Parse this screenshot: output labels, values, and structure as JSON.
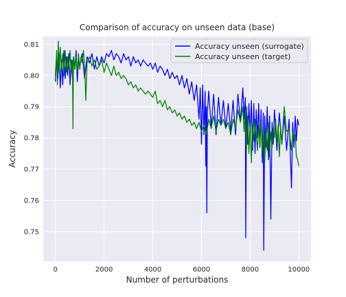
{
  "chart_data": {
    "type": "line",
    "title": "Comparison of accuracy on unseen data (base)",
    "xlabel": "Number of perturbations",
    "ylabel": "Accuracy",
    "xlim": [
      -500,
      10500
    ],
    "ylim": [
      0.7405,
      0.8125
    ],
    "x_ticks": [
      0,
      2000,
      4000,
      6000,
      8000,
      10000
    ],
    "y_ticks": [
      0.75,
      0.76,
      0.77,
      0.78,
      0.79,
      0.8,
      0.81
    ],
    "grid": true,
    "legend_position": "top-right",
    "series": [
      {
        "name": "Accuracy unseen (surrogate)",
        "color": "#0000ff",
        "points": [
          [
            0,
            0.798
          ],
          [
            50,
            0.806
          ],
          [
            100,
            0.799
          ],
          [
            150,
            0.807
          ],
          [
            200,
            0.796
          ],
          [
            250,
            0.805
          ],
          [
            300,
            0.797
          ],
          [
            350,
            0.808
          ],
          [
            400,
            0.799
          ],
          [
            450,
            0.806
          ],
          [
            500,
            0.8
          ],
          [
            550,
            0.807
          ],
          [
            600,
            0.797
          ],
          [
            650,
            0.805
          ],
          [
            700,
            0.799
          ],
          [
            750,
            0.806
          ],
          [
            800,
            0.802
          ],
          [
            850,
            0.808
          ],
          [
            900,
            0.798
          ],
          [
            950,
            0.805
          ],
          [
            1000,
            0.803
          ],
          [
            1100,
            0.807
          ],
          [
            1200,
            0.799
          ],
          [
            1300,
            0.806
          ],
          [
            1400,
            0.804
          ],
          [
            1500,
            0.807
          ],
          [
            1600,
            0.802
          ],
          [
            1700,
            0.806
          ],
          [
            1800,
            0.803
          ],
          [
            1900,
            0.806
          ],
          [
            2000,
            0.804
          ],
          [
            2100,
            0.807
          ],
          [
            2200,
            0.806
          ],
          [
            2300,
            0.808
          ],
          [
            2400,
            0.805
          ],
          [
            2500,
            0.807
          ],
          [
            2600,
            0.806
          ],
          [
            2700,
            0.804
          ],
          [
            2800,
            0.807
          ],
          [
            2900,
            0.805
          ],
          [
            3000,
            0.806
          ],
          [
            3100,
            0.803
          ],
          [
            3200,
            0.806
          ],
          [
            3300,
            0.804
          ],
          [
            3400,
            0.805
          ],
          [
            3500,
            0.803
          ],
          [
            3600,
            0.805
          ],
          [
            3700,
            0.804
          ],
          [
            3800,
            0.803
          ],
          [
            3900,
            0.804
          ],
          [
            4000,
            0.802
          ],
          [
            4100,
            0.804
          ],
          [
            4200,
            0.801
          ],
          [
            4300,
            0.803
          ],
          [
            4400,
            0.802
          ],
          [
            4500,
            0.8
          ],
          [
            4600,
            0.802
          ],
          [
            4700,
            0.799
          ],
          [
            4800,
            0.801
          ],
          [
            4900,
            0.799
          ],
          [
            5000,
            0.8
          ],
          [
            5100,
            0.797
          ],
          [
            5200,
            0.8
          ],
          [
            5300,
            0.796
          ],
          [
            5400,
            0.799
          ],
          [
            5500,
            0.794
          ],
          [
            5600,
            0.798
          ],
          [
            5700,
            0.792
          ],
          [
            5800,
            0.797
          ],
          [
            5900,
            0.786
          ],
          [
            5950,
            0.796
          ],
          [
            6000,
            0.778
          ],
          [
            6050,
            0.797
          ],
          [
            6100,
            0.781
          ],
          [
            6150,
            0.795
          ],
          [
            6180,
            0.771
          ],
          [
            6200,
            0.79
          ],
          [
            6220,
            0.756
          ],
          [
            6240,
            0.788
          ],
          [
            6300,
            0.795
          ],
          [
            6400,
            0.783
          ],
          [
            6500,
            0.794
          ],
          [
            6600,
            0.781
          ],
          [
            6700,
            0.793
          ],
          [
            6800,
            0.784
          ],
          [
            6900,
            0.792
          ],
          [
            7000,
            0.783
          ],
          [
            7100,
            0.791
          ],
          [
            7200,
            0.782
          ],
          [
            7300,
            0.792
          ],
          [
            7400,
            0.781
          ],
          [
            7500,
            0.794
          ],
          [
            7600,
            0.785
          ],
          [
            7700,
            0.796
          ],
          [
            7750,
            0.786
          ],
          [
            7800,
            0.793
          ],
          [
            7820,
            0.748
          ],
          [
            7850,
            0.79
          ],
          [
            7900,
            0.778
          ],
          [
            7950,
            0.791
          ],
          [
            8000,
            0.781
          ],
          [
            8050,
            0.792
          ],
          [
            8100,
            0.776
          ],
          [
            8150,
            0.791
          ],
          [
            8200,
            0.775
          ],
          [
            8250,
            0.789
          ],
          [
            8300,
            0.78
          ],
          [
            8350,
            0.791
          ],
          [
            8400,
            0.777
          ],
          [
            8450,
            0.789
          ],
          [
            8500,
            0.772
          ],
          [
            8540,
            0.788
          ],
          [
            8560,
            0.744
          ],
          [
            8600,
            0.787
          ],
          [
            8650,
            0.777
          ],
          [
            8700,
            0.79
          ],
          [
            8750,
            0.773
          ],
          [
            8800,
            0.787
          ],
          [
            8850,
            0.754
          ],
          [
            8900,
            0.785
          ],
          [
            8950,
            0.778
          ],
          [
            9000,
            0.789
          ],
          [
            9100,
            0.776
          ],
          [
            9200,
            0.788
          ],
          [
            9300,
            0.778
          ],
          [
            9400,
            0.787
          ],
          [
            9500,
            0.776
          ],
          [
            9600,
            0.786
          ],
          [
            9700,
            0.764
          ],
          [
            9750,
            0.785
          ],
          [
            9800,
            0.777
          ],
          [
            9850,
            0.787
          ],
          [
            9900,
            0.779
          ],
          [
            9950,
            0.786
          ],
          [
            10000,
            0.784
          ]
        ]
      },
      {
        "name": "Accuracy unseen (target)",
        "color": "#008000",
        "points": [
          [
            0,
            0.8
          ],
          [
            50,
            0.808
          ],
          [
            80,
            0.797
          ],
          [
            120,
            0.811
          ],
          [
            160,
            0.801
          ],
          [
            200,
            0.809
          ],
          [
            250,
            0.802
          ],
          [
            300,
            0.807
          ],
          [
            350,
            0.8
          ],
          [
            400,
            0.808
          ],
          [
            450,
            0.801
          ],
          [
            500,
            0.806
          ],
          [
            550,
            0.802
          ],
          [
            600,
            0.808
          ],
          [
            650,
            0.801
          ],
          [
            700,
            0.805
          ],
          [
            720,
            0.783
          ],
          [
            740,
            0.806
          ],
          [
            800,
            0.802
          ],
          [
            850,
            0.806
          ],
          [
            900,
            0.801
          ],
          [
            950,
            0.807
          ],
          [
            1000,
            0.802
          ],
          [
            1050,
            0.806
          ],
          [
            1100,
            0.804
          ],
          [
            1150,
            0.808
          ],
          [
            1200,
            0.803
          ],
          [
            1250,
            0.792
          ],
          [
            1300,
            0.804
          ],
          [
            1400,
            0.806
          ],
          [
            1500,
            0.803
          ],
          [
            1600,
            0.805
          ],
          [
            1700,
            0.802
          ],
          [
            1800,
            0.803
          ],
          [
            1900,
            0.805
          ],
          [
            2000,
            0.801
          ],
          [
            2100,
            0.804
          ],
          [
            2200,
            0.802
          ],
          [
            2300,
            0.8
          ],
          [
            2400,
            0.803
          ],
          [
            2500,
            0.8
          ],
          [
            2600,
            0.801
          ],
          [
            2700,
            0.799
          ],
          [
            2800,
            0.8
          ],
          [
            2900,
            0.799
          ],
          [
            3000,
            0.797
          ],
          [
            3100,
            0.798
          ],
          [
            3200,
            0.796
          ],
          [
            3300,
            0.797
          ],
          [
            3400,
            0.795
          ],
          [
            3500,
            0.796
          ],
          [
            3600,
            0.795
          ],
          [
            3700,
            0.794
          ],
          [
            3800,
            0.795
          ],
          [
            3900,
            0.794
          ],
          [
            4000,
            0.793
          ],
          [
            4100,
            0.795
          ],
          [
            4200,
            0.791
          ],
          [
            4300,
            0.792
          ],
          [
            4400,
            0.79
          ],
          [
            4500,
            0.792
          ],
          [
            4600,
            0.789
          ],
          [
            4700,
            0.79
          ],
          [
            4800,
            0.788
          ],
          [
            4900,
            0.789
          ],
          [
            5000,
            0.787
          ],
          [
            5100,
            0.788
          ],
          [
            5200,
            0.786
          ],
          [
            5300,
            0.787
          ],
          [
            5400,
            0.785
          ],
          [
            5500,
            0.786
          ],
          [
            5600,
            0.784
          ],
          [
            5700,
            0.785
          ],
          [
            5800,
            0.783
          ],
          [
            5900,
            0.785
          ],
          [
            6000,
            0.782
          ],
          [
            6100,
            0.784
          ],
          [
            6200,
            0.781
          ],
          [
            6300,
            0.786
          ],
          [
            6400,
            0.783
          ],
          [
            6500,
            0.787
          ],
          [
            6600,
            0.782
          ],
          [
            6700,
            0.786
          ],
          [
            6800,
            0.784
          ],
          [
            6900,
            0.786
          ],
          [
            7000,
            0.783
          ],
          [
            7100,
            0.785
          ],
          [
            7200,
            0.781
          ],
          [
            7300,
            0.786
          ],
          [
            7400,
            0.783
          ],
          [
            7500,
            0.789
          ],
          [
            7600,
            0.785
          ],
          [
            7700,
            0.79
          ],
          [
            7750,
            0.782
          ],
          [
            7800,
            0.789
          ],
          [
            7850,
            0.776
          ],
          [
            7900,
            0.787
          ],
          [
            7950,
            0.775
          ],
          [
            8000,
            0.785
          ],
          [
            8050,
            0.772
          ],
          [
            8100,
            0.784
          ],
          [
            8150,
            0.779
          ],
          [
            8200,
            0.786
          ],
          [
            8300,
            0.776
          ],
          [
            8350,
            0.784
          ],
          [
            8400,
            0.778
          ],
          [
            8450,
            0.785
          ],
          [
            8500,
            0.775
          ],
          [
            8550,
            0.782
          ],
          [
            8600,
            0.772
          ],
          [
            8650,
            0.783
          ],
          [
            8700,
            0.776
          ],
          [
            8750,
            0.785
          ],
          [
            8800,
            0.774
          ],
          [
            8850,
            0.782
          ],
          [
            8900,
            0.777
          ],
          [
            8950,
            0.783
          ],
          [
            9000,
            0.78
          ],
          [
            9050,
            0.786
          ],
          [
            9100,
            0.778
          ],
          [
            9150,
            0.784
          ],
          [
            9200,
            0.774
          ],
          [
            9250,
            0.784
          ],
          [
            9300,
            0.778
          ],
          [
            9400,
            0.79
          ],
          [
            9500,
            0.782
          ],
          [
            9600,
            0.783
          ],
          [
            9700,
            0.776
          ],
          [
            9750,
            0.782
          ],
          [
            9800,
            0.78
          ],
          [
            9850,
            0.781
          ],
          [
            9900,
            0.774
          ],
          [
            9950,
            0.773
          ],
          [
            10000,
            0.771
          ]
        ]
      }
    ]
  }
}
